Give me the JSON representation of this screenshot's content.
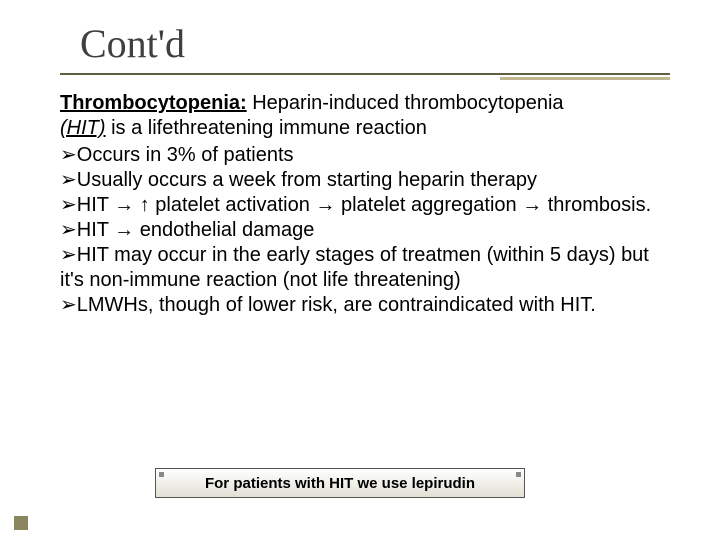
{
  "slide": {
    "title": "Cont'd",
    "title_color": "#3f3f3f",
    "title_fontsize": 40,
    "underline": {
      "dark_color": "#5f5f42",
      "light_color": "#c0b890"
    },
    "body_fontsize": 20,
    "lead_label": "Thrombocytopenia:",
    "intro_part1": " Heparin-induced thrombocytopenia ",
    "hit_abbrev": "(HIT)",
    "intro_part2": "  is a lifethreatening immune reaction",
    "bullet_marker": "➢",
    "bullets": [
      "Occurs in 3% of patients",
      "Usually occurs a week from starting heparin therapy",
      "HIT → ↑ platelet activation → platelet aggregation → thrombosis.",
      "HIT → endothelial damage",
      "HIT may occur in the early stages of treatmen (within 5 days) but it's non-immune reaction (not life threatening)",
      "LMWHs, though of lower risk, are contraindicated with HIT."
    ],
    "callout_text": "For patients with HIT we use lepirudin",
    "callout_fontsize": 15,
    "corner_square_color": "#8a865f"
  }
}
